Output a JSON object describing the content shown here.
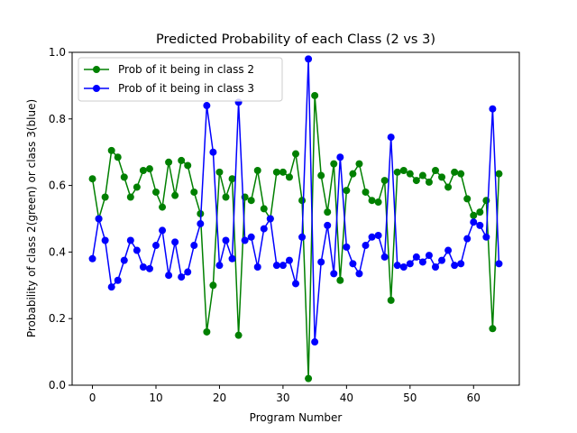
{
  "chart_data": {
    "type": "line",
    "title": "Predicted Probability of each Class (2 vs 3)",
    "xlabel": "Program Number",
    "ylabel": "Probability of class 2(green) or class 3(blue)",
    "xlim": [
      -3.2,
      67.2
    ],
    "ylim": [
      0.0,
      1.0
    ],
    "xticks": [
      0,
      10,
      20,
      30,
      40,
      50,
      60
    ],
    "yticks": [
      0.0,
      0.2,
      0.4,
      0.6,
      0.8,
      1.0
    ],
    "xtick_labels": [
      "0",
      "10",
      "20",
      "30",
      "40",
      "50",
      "60"
    ],
    "ytick_labels": [
      "0.0",
      "0.2",
      "0.4",
      "0.6",
      "0.8",
      "1.0"
    ],
    "grid": false,
    "legend_position": "top-left",
    "x": [
      0,
      1,
      2,
      3,
      4,
      5,
      6,
      7,
      8,
      9,
      10,
      11,
      12,
      13,
      14,
      15,
      16,
      17,
      18,
      19,
      20,
      21,
      22,
      23,
      24,
      25,
      26,
      27,
      28,
      29,
      30,
      31,
      32,
      33,
      34,
      35,
      36,
      37,
      38,
      39,
      40,
      41,
      42,
      43,
      44,
      45,
      46,
      47,
      48,
      49,
      50,
      51,
      52,
      53,
      54,
      55,
      56,
      57,
      58,
      59,
      60,
      61,
      62,
      63,
      64
    ],
    "series": [
      {
        "name": "Prob of it being in class 2",
        "color": "#008000",
        "values": [
          0.62,
          0.5,
          0.565,
          0.705,
          0.685,
          0.625,
          0.565,
          0.595,
          0.645,
          0.65,
          0.58,
          0.535,
          0.67,
          0.57,
          0.675,
          0.66,
          0.58,
          0.515,
          0.16,
          0.3,
          0.64,
          0.565,
          0.62,
          0.15,
          0.565,
          0.555,
          0.645,
          0.53,
          0.5,
          0.64,
          0.64,
          0.625,
          0.695,
          0.555,
          0.02,
          0.87,
          0.63,
          0.52,
          0.665,
          0.315,
          0.585,
          0.635,
          0.665,
          0.58,
          0.555,
          0.55,
          0.615,
          0.255,
          0.64,
          0.645,
          0.635,
          0.615,
          0.63,
          0.61,
          0.645,
          0.625,
          0.595,
          0.64,
          0.635,
          0.56,
          0.51,
          0.52,
          0.555,
          0.17,
          0.635
        ]
      },
      {
        "name": "Prob of it being in class 3",
        "color": "#0000ff",
        "values": [
          0.38,
          0.5,
          0.435,
          0.295,
          0.315,
          0.375,
          0.435,
          0.405,
          0.355,
          0.35,
          0.42,
          0.465,
          0.33,
          0.43,
          0.325,
          0.34,
          0.42,
          0.485,
          0.84,
          0.7,
          0.36,
          0.435,
          0.38,
          0.85,
          0.435,
          0.445,
          0.355,
          0.47,
          0.5,
          0.36,
          0.36,
          0.375,
          0.305,
          0.445,
          0.98,
          0.13,
          0.37,
          0.48,
          0.335,
          0.685,
          0.415,
          0.365,
          0.335,
          0.42,
          0.445,
          0.45,
          0.385,
          0.745,
          0.36,
          0.355,
          0.365,
          0.385,
          0.37,
          0.39,
          0.355,
          0.375,
          0.405,
          0.36,
          0.365,
          0.44,
          0.49,
          0.48,
          0.445,
          0.83,
          0.365
        ]
      }
    ]
  }
}
